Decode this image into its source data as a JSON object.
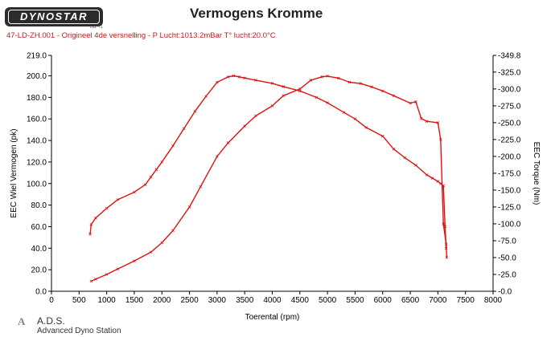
{
  "header": {
    "logo_text": "DYNOSTAR",
    "logo_subtext": "Ltd. T1",
    "title": "Vermogens Kromme",
    "subtitle": "47-LD-ZH.001 - Origineel 4de versnelling  - P Lucht:1013.2mBar T° lucht:20.0°C"
  },
  "footer": {
    "logo_text": "A",
    "title": "A.D.S.",
    "subtitle": "Advanced Dyno Station"
  },
  "colors": {
    "series": "#e01010",
    "axis": "#000000",
    "text": "#000000"
  },
  "chart_data": {
    "type": "line",
    "title": "Vermogens Kromme",
    "xlabel": "Toerental (rpm)",
    "ylabel": "EEC Wiel Vermogen (pk)",
    "y2label": "EEC Torque (Nm)",
    "xlim": [
      0,
      8000
    ],
    "ylim": [
      0,
      219
    ],
    "y2lim": [
      0,
      349.8
    ],
    "x_ticks": [
      "0",
      "500",
      "1000",
      "1500",
      "2000",
      "2500",
      "3000",
      "3500",
      "4000",
      "4500",
      "5000",
      "5500",
      "6000",
      "6500",
      "7000",
      "7500",
      "8000"
    ],
    "y_ticks": [
      "0.0",
      "20.0",
      "40.0",
      "60.0",
      "80.0",
      "100.0",
      "120.0",
      "140.0",
      "160.0",
      "180.0",
      "200.0",
      "219.0"
    ],
    "y_tick_values": [
      0,
      20,
      40,
      60,
      80,
      100,
      120,
      140,
      160,
      180,
      200,
      219
    ],
    "y2_ticks": [
      "-0.0",
      "-25.0",
      "-50.0",
      "-75.0",
      "-100.0",
      "-125.0",
      "-150.0",
      "-175.0",
      "-200.0",
      "-225.0",
      "-250.0",
      "-275.0",
      "-300.0",
      "-325.0",
      "-349.8"
    ],
    "y2_tick_values": [
      0,
      25,
      50,
      75,
      100,
      125,
      150,
      175,
      200,
      225,
      250,
      275,
      300,
      325,
      349.8
    ],
    "grid": false,
    "series": [
      {
        "axis": "left",
        "x": [
          700,
          720,
          800,
          1000,
          1200,
          1500,
          1700,
          1800,
          1900,
          2000,
          2200,
          2400,
          2600,
          2800,
          3000,
          3200,
          3300,
          3400,
          3500,
          3700,
          4000,
          4200,
          4500,
          4800,
          5000,
          5300,
          5500,
          5700,
          6000,
          6200,
          6400,
          6600,
          6800,
          6900,
          7000,
          7050,
          7100,
          7130,
          7150
        ],
        "y": [
          53,
          62,
          68,
          77,
          85,
          92,
          99,
          106,
          113,
          120,
          135,
          151,
          167,
          181,
          194,
          199,
          200,
          199,
          198,
          196,
          193,
          190,
          186,
          180,
          175,
          166,
          160,
          152,
          144,
          132,
          124,
          117,
          108,
          105,
          102,
          100,
          98,
          60,
          40
        ]
      },
      {
        "axis": "right",
        "x": [
          720,
          800,
          1000,
          1200,
          1500,
          1800,
          2000,
          2200,
          2500,
          2700,
          3000,
          3200,
          3500,
          3700,
          4000,
          4200,
          4500,
          4700,
          4900,
          5000,
          5200,
          5400,
          5600,
          5800,
          6000,
          6200,
          6500,
          6600,
          6700,
          6800,
          7000,
          7050,
          7100,
          7150,
          7160
        ],
        "y": [
          15,
          18,
          25,
          33,
          45,
          58,
          72,
          90,
          125,
          155,
          200,
          220,
          245,
          260,
          275,
          290,
          300,
          313,
          318,
          319,
          316,
          310,
          308,
          303,
          297,
          290,
          279,
          281,
          256,
          252,
          250,
          225,
          100,
          70,
          50
        ]
      }
    ]
  }
}
